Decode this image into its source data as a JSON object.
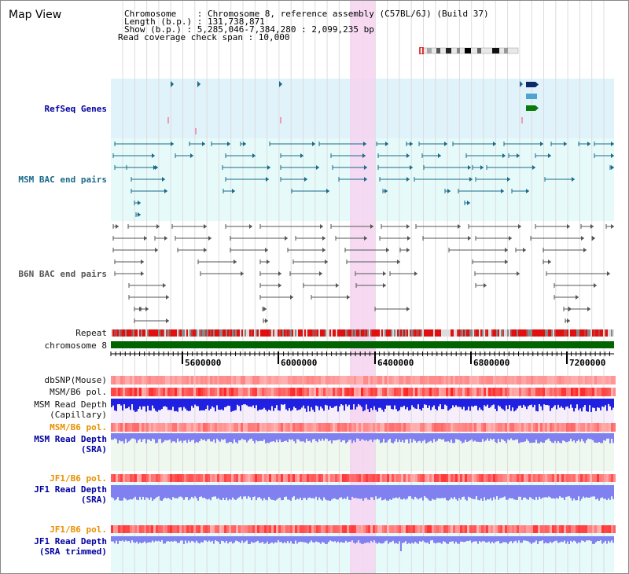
{
  "view_title": "Map View",
  "info": {
    "chromosome": "Chromosome    : Chromosome 8, reference assembly (C57BL/6J) (Build 37)",
    "length": "Length (b.p.) : 131,738,871",
    "show": "Show (b.p.) : 5,285,046-7,384,280 : 2,099,235 bp",
    "coverage": "Read coverage check span : 10,000"
  },
  "tracks": {
    "refseq": "RefSeq Genes",
    "msm_bac": "MSM BAC end pairs",
    "b6n_bac": "B6N BAC end pairs",
    "repeat": "Repeat",
    "chromosome": "chromosome 8",
    "dbsnp": "dbSNP(Mouse)",
    "msm_b6_pol": "MSM/B6 pol.",
    "msm_depth_cap_1": "MSM Read Depth",
    "msm_depth_cap_2": "(Capillary)",
    "msm_b6_pol_2": "MSM/B6 pol.",
    "msm_depth_sra_1": "MSM Read Depth",
    "msm_depth_sra_2": "(SRA)",
    "jf1_b6_pol": "JF1/B6 pol.",
    "jf1_depth_sra_1": "JF1 Read Depth",
    "jf1_depth_sra_2": "(SRA)",
    "jf1_b6_pol_2": "JF1/B6 pol.",
    "jf1_depth_trim_1": "JF1 Read Depth",
    "jf1_depth_trim_2": "(SRA trimmed)"
  },
  "axis": {
    "ticks": [
      "5600000",
      "6000000",
      "6400000",
      "6800000",
      "7200000"
    ]
  },
  "colors": {
    "refseq_bg": "#e0f2fa",
    "msm_bac_bg": "#e6fafa",
    "msm_bac_line": "#1a6a8a",
    "b6n_line": "#555555",
    "highlight": "#f6d4f0",
    "chromosome_bar": "#006400",
    "depth_blue": "#2020e0",
    "depth_lavender": "#8080f0",
    "pol_red": "#f05050"
  }
}
